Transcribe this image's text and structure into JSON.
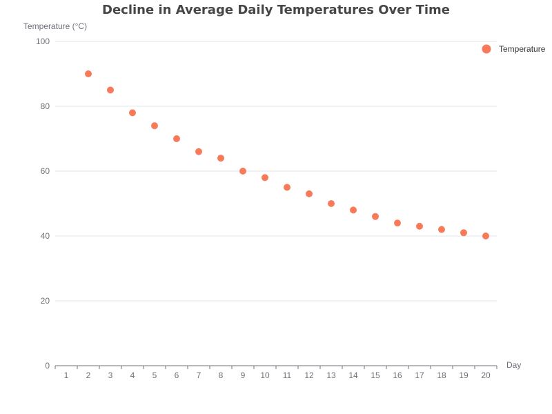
{
  "chart_data": {
    "type": "scatter",
    "title": "Decline in Average Daily Temperatures Over Time",
    "xlabel": "Day",
    "ylabel": "Temperature (°C)",
    "categories": [
      "1",
      "2",
      "3",
      "4",
      "5",
      "6",
      "7",
      "8",
      "9",
      "10",
      "11",
      "12",
      "13",
      "14",
      "15",
      "16",
      "17",
      "18",
      "19",
      "20"
    ],
    "y_ticks": [
      0,
      20,
      40,
      60,
      80,
      100
    ],
    "ylim": [
      0,
      100
    ],
    "grid": true,
    "legend": {
      "position": "top-right"
    },
    "series": [
      {
        "name": "Temperature",
        "color": "#f87a5a",
        "x": [
          "2",
          "3",
          "4",
          "5",
          "6",
          "7",
          "8",
          "9",
          "10",
          "11",
          "12",
          "13",
          "14",
          "15",
          "16",
          "17",
          "18",
          "19",
          "20"
        ],
        "values": [
          90,
          85,
          78,
          74,
          70,
          66,
          64,
          60,
          58,
          55,
          53,
          50,
          48,
          46,
          44,
          43,
          42,
          41,
          40
        ]
      }
    ]
  }
}
